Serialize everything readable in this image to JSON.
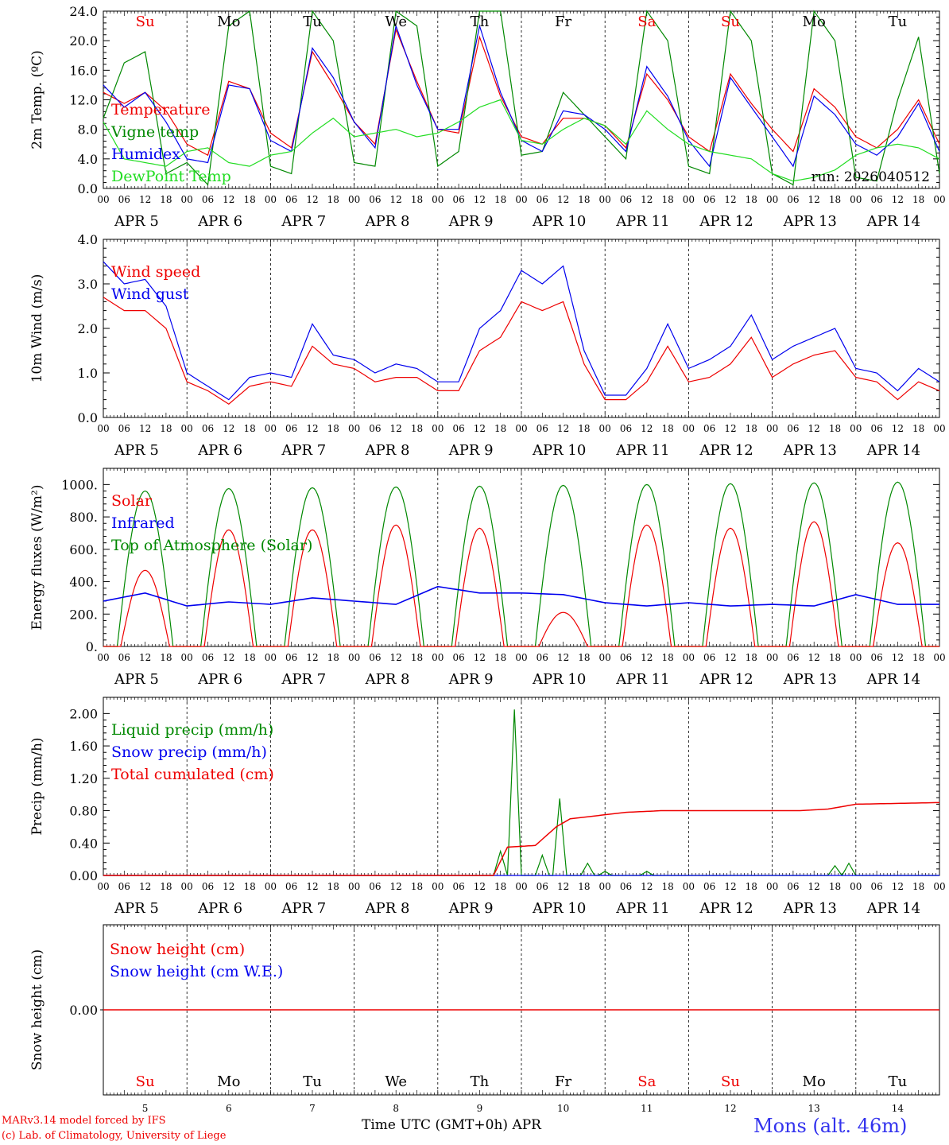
{
  "colors": {
    "red": "#ee0000",
    "green": "#008800",
    "blue": "#0000ee",
    "lightgreen": "#22dd22"
  },
  "days": [
    {
      "abbr": "Su",
      "date": "APR  5",
      "num": "5",
      "weekend": true
    },
    {
      "abbr": "Mo",
      "date": "APR  6",
      "num": "6",
      "weekend": false
    },
    {
      "abbr": "Tu",
      "date": "APR  7",
      "num": "7",
      "weekend": false
    },
    {
      "abbr": "We",
      "date": "APR  8",
      "num": "8",
      "weekend": false
    },
    {
      "abbr": "Th",
      "date": "APR  9",
      "num": "9",
      "weekend": false
    },
    {
      "abbr": "Fr",
      "date": "APR 10",
      "num": "10",
      "weekend": false
    },
    {
      "abbr": "Sa",
      "date": "APR 11",
      "num": "11",
      "weekend": true
    },
    {
      "abbr": "Su",
      "date": "APR 12",
      "num": "12",
      "weekend": true
    },
    {
      "abbr": "Mo",
      "date": "APR 13",
      "num": "13",
      "weekend": false
    },
    {
      "abbr": "Tu",
      "date": "APR 14",
      "num": "14",
      "weekend": false
    }
  ],
  "hour_labels": [
    "00",
    "06",
    "12",
    "18"
  ],
  "run_label": "run: 2026040512",
  "xlabel": "Time UTC (GMT+0h)",
  "xlabel_month": "APR",
  "station": "Mons (alt. 46m)",
  "credit_line1": "MARv3.14 model forced by IFS",
  "credit_line2": "(c) Lab. of Climatology, University of Liege",
  "chart_data": [
    {
      "type": "line",
      "ylabel": "2m Temp. (ºC)",
      "ylim": [
        0,
        24
      ],
      "yticks": [
        "0.0",
        "4.0",
        "8.0",
        "12.0",
        "16.0",
        "20.0",
        "24.0"
      ],
      "x_hours": [
        0,
        6,
        12,
        18,
        24,
        30,
        36,
        42,
        48,
        54,
        60,
        66,
        72,
        78,
        84,
        90,
        96,
        102,
        108,
        114,
        120,
        126,
        132,
        138,
        144,
        150,
        156,
        162,
        168,
        174,
        180,
        186,
        192,
        198,
        204,
        210,
        216,
        222,
        228,
        234,
        240
      ],
      "series": [
        {
          "name": "Temperature",
          "color": "red",
          "values": [
            13.0,
            11.5,
            13.0,
            10.5,
            6.0,
            4.5,
            14.5,
            13.5,
            7.5,
            5.5,
            18.5,
            14.0,
            9.0,
            6.0,
            21.5,
            14.5,
            8.0,
            7.5,
            20.5,
            12.5,
            7.0,
            6.0,
            9.5,
            9.5,
            8.5,
            5.5,
            15.5,
            12.0,
            7.0,
            5.0,
            15.5,
            11.5,
            8.0,
            5.0,
            13.5,
            11.0,
            7.0,
            5.5,
            8.0,
            12.0,
            6.0
          ]
        },
        {
          "name": "Vigne temp",
          "color": "green",
          "values": [
            9.5,
            17.0,
            18.5,
            2.0,
            3.5,
            0.5,
            22.0,
            24.0,
            3.0,
            2.0,
            24.0,
            20.0,
            3.5,
            3.0,
            24.0,
            22.0,
            3.0,
            5.0,
            24.0,
            24.0,
            4.5,
            5.0,
            13.0,
            10.0,
            7.0,
            4.0,
            24.0,
            20.0,
            3.0,
            2.0,
            24.0,
            20.0,
            2.0,
            0.5,
            24.0,
            20.0,
            1.5,
            1.0,
            12.0,
            20.5,
            2.0
          ]
        },
        {
          "name": "Humidex",
          "color": "blue",
          "values": [
            14.0,
            11.0,
            13.0,
            9.0,
            4.0,
            3.5,
            14.0,
            13.5,
            6.5,
            5.0,
            19.0,
            15.0,
            9.0,
            5.5,
            22.0,
            14.0,
            8.0,
            8.0,
            22.0,
            13.0,
            6.5,
            5.0,
            10.5,
            10.0,
            8.0,
            5.0,
            16.5,
            12.5,
            6.5,
            3.0,
            15.0,
            11.0,
            7.0,
            3.0,
            12.5,
            10.0,
            6.0,
            4.5,
            7.0,
            11.5,
            5.0
          ]
        },
        {
          "name": "DewPoint Temp",
          "color": "lightgreen",
          "values": [
            9.0,
            4.0,
            3.5,
            3.0,
            5.0,
            5.5,
            3.5,
            3.0,
            4.5,
            5.0,
            7.5,
            9.5,
            7.0,
            7.5,
            8.0,
            7.0,
            7.5,
            9.0,
            11.0,
            12.0,
            6.5,
            6.0,
            8.0,
            9.5,
            8.5,
            6.0,
            10.5,
            8.0,
            6.0,
            5.0,
            4.5,
            4.0,
            2.0,
            1.0,
            1.5,
            2.5,
            4.5,
            5.5,
            6.0,
            5.5,
            4.0
          ]
        }
      ]
    },
    {
      "type": "line",
      "ylabel": "10m Wind (m/s)",
      "ylim": [
        0,
        4
      ],
      "yticks": [
        "0.0",
        "1.0",
        "2.0",
        "3.0",
        "4.0"
      ],
      "x_hours": [
        0,
        6,
        12,
        18,
        24,
        30,
        36,
        42,
        48,
        54,
        60,
        66,
        72,
        78,
        84,
        90,
        96,
        102,
        108,
        114,
        120,
        126,
        132,
        138,
        144,
        150,
        156,
        162,
        168,
        174,
        180,
        186,
        192,
        198,
        204,
        210,
        216,
        222,
        228,
        234,
        240
      ],
      "series": [
        {
          "name": "Wind speed",
          "color": "red",
          "values": [
            2.7,
            2.4,
            2.4,
            2.0,
            0.8,
            0.6,
            0.3,
            0.7,
            0.8,
            0.7,
            1.6,
            1.2,
            1.1,
            0.8,
            0.9,
            0.9,
            0.6,
            0.6,
            1.5,
            1.8,
            2.6,
            2.4,
            2.6,
            1.2,
            0.4,
            0.4,
            0.8,
            1.6,
            0.8,
            0.9,
            1.2,
            1.8,
            0.9,
            1.2,
            1.4,
            1.5,
            0.9,
            0.8,
            0.4,
            0.8,
            0.6
          ]
        },
        {
          "name": "Wind gust",
          "color": "blue",
          "values": [
            3.5,
            3.0,
            3.1,
            2.5,
            1.0,
            0.7,
            0.4,
            0.9,
            1.0,
            0.9,
            2.1,
            1.4,
            1.3,
            1.0,
            1.2,
            1.1,
            0.8,
            0.8,
            2.0,
            2.4,
            3.3,
            3.0,
            3.4,
            1.5,
            0.5,
            0.5,
            1.1,
            2.1,
            1.1,
            1.3,
            1.6,
            2.3,
            1.3,
            1.6,
            1.8,
            2.0,
            1.1,
            1.0,
            0.6,
            1.1,
            0.8
          ]
        }
      ]
    },
    {
      "type": "line",
      "ylabel": "Energy fluxes (W/m²)",
      "ylim": [
        0,
        1100
      ],
      "yticks": [
        "0.",
        "200.",
        "400.",
        "600.",
        "800.",
        "1000."
      ],
      "solar_max": [
        470,
        720,
        720,
        750,
        730,
        210,
        750,
        730,
        770,
        640
      ],
      "toa_max": [
        960,
        975,
        980,
        985,
        990,
        995,
        1000,
        1005,
        1010,
        1015
      ],
      "infrared": [
        280,
        330,
        250,
        275,
        260,
        300,
        280,
        260,
        370,
        330,
        330,
        320,
        270,
        250,
        270,
        250,
        260,
        250,
        320,
        260
      ],
      "series": [
        {
          "name": "Solar",
          "color": "red"
        },
        {
          "name": "Infrared",
          "color": "blue"
        },
        {
          "name": "Top of Atmosphere (Solar)",
          "color": "green"
        }
      ]
    },
    {
      "type": "line",
      "ylabel": "Precip (mm/h)",
      "ylim": [
        0,
        2.2
      ],
      "yticks": [
        "0.00",
        "0.40",
        "0.80",
        "1.20",
        "1.60",
        "2.00"
      ],
      "liquid_events": [
        [
          114,
          0.3
        ],
        [
          118,
          2.05
        ],
        [
          126,
          0.25
        ],
        [
          131,
          0.95
        ],
        [
          139,
          0.15
        ],
        [
          144,
          0.05
        ],
        [
          156,
          0.05
        ],
        [
          210,
          0.12
        ],
        [
          214,
          0.15
        ]
      ],
      "cumulated": [
        [
          0,
          0
        ],
        [
          112,
          0
        ],
        [
          116,
          0.35
        ],
        [
          124,
          0.37
        ],
        [
          130,
          0.6
        ],
        [
          134,
          0.7
        ],
        [
          144,
          0.75
        ],
        [
          150,
          0.78
        ],
        [
          160,
          0.8
        ],
        [
          200,
          0.8
        ],
        [
          208,
          0.82
        ],
        [
          216,
          0.88
        ],
        [
          240,
          0.9
        ]
      ],
      "series": [
        {
          "name": "Liquid precip (mm/h)",
          "color": "green"
        },
        {
          "name": "Snow precip (mm/h)",
          "color": "blue"
        },
        {
          "name": "Total cumulated (cm)",
          "color": "red"
        }
      ]
    },
    {
      "type": "line",
      "ylabel": "Snow height (cm)",
      "ylim": [
        -1,
        1
      ],
      "yticks": [
        "0.00"
      ],
      "values": [
        0,
        0
      ],
      "series": [
        {
          "name": "Snow height (cm)",
          "color": "red"
        },
        {
          "name": "Snow height (cm W.E.)",
          "color": "blue"
        }
      ]
    }
  ]
}
